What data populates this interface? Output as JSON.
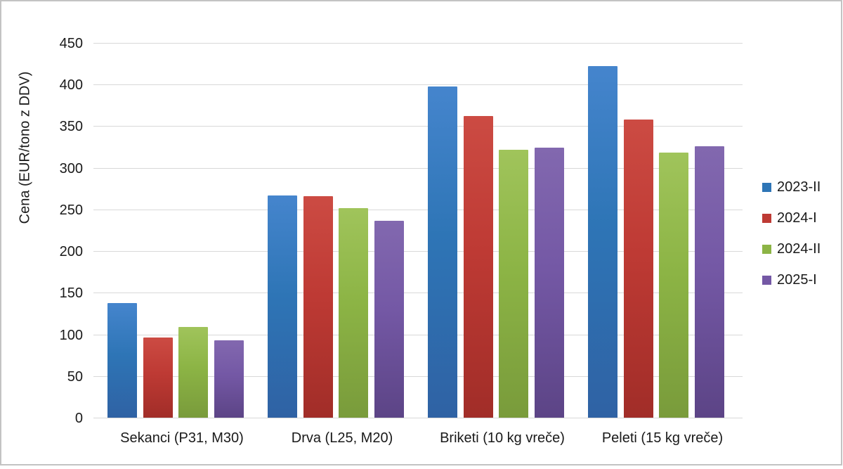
{
  "chart_data": {
    "type": "bar",
    "title": "",
    "ylabel": "Cena (EUR/tono z DDV)",
    "xlabel": "",
    "ylim": [
      0,
      450
    ],
    "ytick_step": 50,
    "grid": true,
    "legend_position": "right",
    "categories": [
      "Sekanci (P31, M30)",
      "Drva (L25, M20)",
      "Briketi (10 kg vreče)",
      "Peleti (15 kg vreče)"
    ],
    "series": [
      {
        "name": "2023-II",
        "color": "#2e75b6",
        "gradient": [
          "#4585cd",
          "#2f62a4"
        ],
        "values": [
          138,
          267,
          398,
          422
        ]
      },
      {
        "name": "2024-I",
        "color": "#be3a34",
        "gradient": [
          "#cc4b43",
          "#a12d28"
        ],
        "values": [
          96,
          266,
          362,
          358
        ]
      },
      {
        "name": "2024-II",
        "color": "#8cb445",
        "gradient": [
          "#a0c45b",
          "#799b3b"
        ],
        "values": [
          109,
          252,
          322,
          318
        ]
      },
      {
        "name": "2025-I",
        "color": "#7458a5",
        "gradient": [
          "#8268af",
          "#5c4486"
        ],
        "values": [
          93,
          236,
          324,
          326
        ]
      }
    ],
    "gridline_color": "#d8d8d8",
    "text_color": "#1a1a1a"
  }
}
